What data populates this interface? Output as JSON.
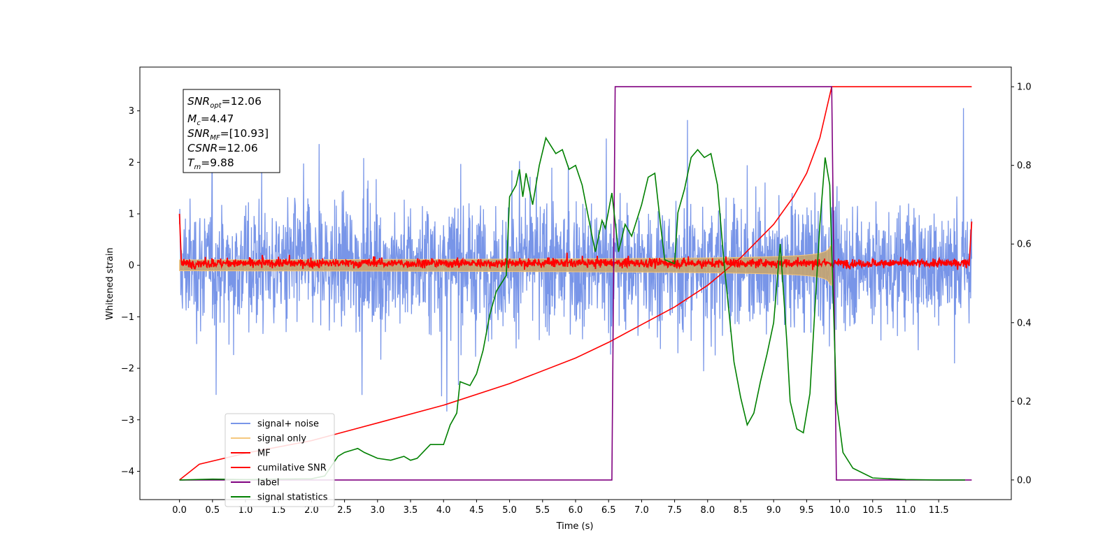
{
  "chart_data": {
    "type": "line",
    "xlabel": "Time (s)",
    "ylabel": "Whitened strain",
    "xlim": [
      -0.6,
      12.6
    ],
    "ylim": [
      -4.55,
      3.85
    ],
    "y2lim": [
      -0.05,
      1.05
    ],
    "x_ticks": [
      "0.0",
      "0.5",
      "1.0",
      "1.5",
      "2.0",
      "2.5",
      "3.0",
      "3.5",
      "4.0",
      "4.5",
      "5.0",
      "5.5",
      "6.0",
      "6.5",
      "7.0",
      "7.5",
      "8.0",
      "8.5",
      "9.0",
      "9.5",
      "10.0",
      "10.5",
      "11.0",
      "11.5"
    ],
    "y_ticks": [
      "3",
      "2",
      "1",
      "0",
      "−1",
      "−2",
      "−3",
      "−4"
    ],
    "y2_ticks": [
      "1.0",
      "0.8",
      "0.6",
      "0.4",
      "0.2",
      "0.0"
    ],
    "annotation": {
      "snr_opt": "=12.06",
      "mc": "=4.47",
      "snr_mf": "=[10.93]",
      "csnr": "=12.06",
      "tm": "=9.88"
    },
    "legend": {
      "placement": "lower-left",
      "entries": [
        {
          "label": "signal+ noise",
          "color": "#7895e8"
        },
        {
          "label": "signal only",
          "color": "#f5c77e"
        },
        {
          "label": "MF",
          "color": "#ff0000"
        },
        {
          "label": "cumilative SNR",
          "color": "#ff0000"
        },
        {
          "label": "label",
          "color": "#800080"
        },
        {
          "label": "signal statistics",
          "color": "#008000"
        }
      ]
    },
    "series": [
      {
        "name": "signal+ noise",
        "axis": "left",
        "color": "#7895e8",
        "t_range": [
          0.0,
          12.0
        ],
        "approx_band": [
          -2.3,
          2.3
        ]
      },
      {
        "name": "signal only",
        "axis": "left",
        "color": "#f5c77e",
        "t_range": [
          0.0,
          9.88
        ],
        "peak_amplitude": 0.65
      },
      {
        "name": "MF",
        "axis": "left",
        "color": "#ff0000",
        "t_range": [
          0.0,
          12.0
        ],
        "approx_band": [
          -0.12,
          0.2
        ]
      },
      {
        "name": "cumilative SNR",
        "axis": "right",
        "color": "#ff0000",
        "points": [
          [
            0.0,
            0.0
          ],
          [
            0.3,
            0.04
          ],
          [
            1.0,
            0.068
          ],
          [
            2.0,
            0.1
          ],
          [
            3.0,
            0.145
          ],
          [
            4.0,
            0.19
          ],
          [
            5.0,
            0.245
          ],
          [
            6.0,
            0.31
          ],
          [
            6.5,
            0.35
          ],
          [
            7.0,
            0.395
          ],
          [
            7.5,
            0.44
          ],
          [
            8.0,
            0.495
          ],
          [
            8.5,
            0.565
          ],
          [
            9.0,
            0.65
          ],
          [
            9.3,
            0.72
          ],
          [
            9.5,
            0.78
          ],
          [
            9.7,
            0.87
          ],
          [
            9.88,
            1.0
          ],
          [
            12.0,
            1.0
          ]
        ]
      },
      {
        "name": "label",
        "axis": "right",
        "color": "#800080",
        "points": [
          [
            0.0,
            0.0
          ],
          [
            6.55,
            0.0
          ],
          [
            6.6,
            1.0
          ],
          [
            9.88,
            1.0
          ],
          [
            9.95,
            0.0
          ],
          [
            12.0,
            0.0
          ]
        ]
      },
      {
        "name": "signal statistics",
        "axis": "right",
        "color": "#008000",
        "points": [
          [
            0.0,
            0.0
          ],
          [
            0.5,
            0.002
          ],
          [
            1.0,
            0.001
          ],
          [
            1.5,
            0.002
          ],
          [
            2.0,
            0.003
          ],
          [
            2.2,
            0.01
          ],
          [
            2.4,
            0.06
          ],
          [
            2.5,
            0.07
          ],
          [
            2.7,
            0.08
          ],
          [
            2.8,
            0.07
          ],
          [
            3.0,
            0.055
          ],
          [
            3.2,
            0.05
          ],
          [
            3.4,
            0.06
          ],
          [
            3.5,
            0.05
          ],
          [
            3.6,
            0.055
          ],
          [
            3.8,
            0.09
          ],
          [
            4.0,
            0.09
          ],
          [
            4.1,
            0.14
          ],
          [
            4.2,
            0.17
          ],
          [
            4.25,
            0.25
          ],
          [
            4.4,
            0.24
          ],
          [
            4.5,
            0.27
          ],
          [
            4.6,
            0.33
          ],
          [
            4.7,
            0.42
          ],
          [
            4.8,
            0.48
          ],
          [
            4.95,
            0.52
          ],
          [
            5.0,
            0.72
          ],
          [
            5.1,
            0.75
          ],
          [
            5.15,
            0.79
          ],
          [
            5.2,
            0.72
          ],
          [
            5.25,
            0.78
          ],
          [
            5.35,
            0.7
          ],
          [
            5.45,
            0.8
          ],
          [
            5.55,
            0.87
          ],
          [
            5.7,
            0.83
          ],
          [
            5.8,
            0.84
          ],
          [
            5.9,
            0.79
          ],
          [
            6.0,
            0.8
          ],
          [
            6.1,
            0.75
          ],
          [
            6.25,
            0.62
          ],
          [
            6.3,
            0.58
          ],
          [
            6.4,
            0.66
          ],
          [
            6.45,
            0.64
          ],
          [
            6.55,
            0.73
          ],
          [
            6.65,
            0.58
          ],
          [
            6.75,
            0.65
          ],
          [
            6.85,
            0.62
          ],
          [
            7.0,
            0.7
          ],
          [
            7.1,
            0.77
          ],
          [
            7.2,
            0.78
          ],
          [
            7.3,
            0.63
          ],
          [
            7.35,
            0.56
          ],
          [
            7.5,
            0.55
          ],
          [
            7.55,
            0.68
          ],
          [
            7.65,
            0.74
          ],
          [
            7.75,
            0.82
          ],
          [
            7.85,
            0.84
          ],
          [
            7.95,
            0.82
          ],
          [
            8.05,
            0.83
          ],
          [
            8.15,
            0.75
          ],
          [
            8.25,
            0.55
          ],
          [
            8.4,
            0.3
          ],
          [
            8.5,
            0.21
          ],
          [
            8.6,
            0.14
          ],
          [
            8.7,
            0.17
          ],
          [
            8.8,
            0.25
          ],
          [
            8.9,
            0.32
          ],
          [
            9.0,
            0.4
          ],
          [
            9.1,
            0.6
          ],
          [
            9.2,
            0.35
          ],
          [
            9.25,
            0.2
          ],
          [
            9.35,
            0.13
          ],
          [
            9.45,
            0.12
          ],
          [
            9.55,
            0.22
          ],
          [
            9.7,
            0.65
          ],
          [
            9.78,
            0.82
          ],
          [
            9.85,
            0.75
          ],
          [
            9.95,
            0.2
          ],
          [
            10.05,
            0.07
          ],
          [
            10.2,
            0.03
          ],
          [
            10.5,
            0.005
          ],
          [
            11.0,
            0.001
          ],
          [
            11.5,
            0.0
          ],
          [
            11.9,
            0.0
          ]
        ]
      }
    ]
  }
}
